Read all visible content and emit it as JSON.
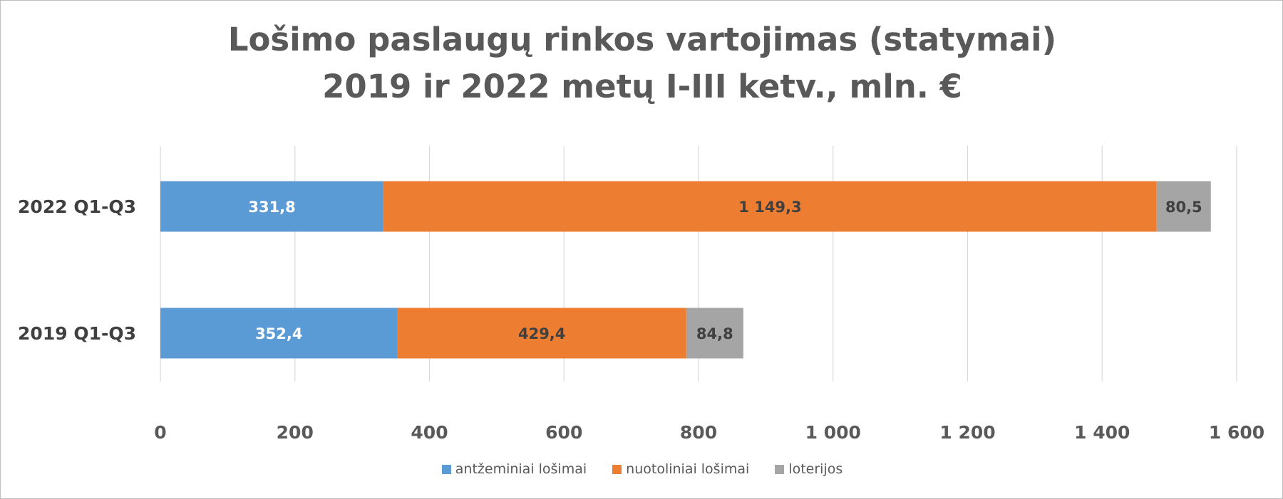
{
  "chart_data": {
    "type": "bar",
    "orientation": "horizontal",
    "stacked": true,
    "title": [
      "Lošimo paslaugų rinkos vartojimas (statymai)",
      "2019 ir 2022 metų I-III ketv., mln. €"
    ],
    "categories": [
      "2022 Q1-Q3",
      "2019 Q1-Q3"
    ],
    "series": [
      {
        "name": "antžeminiai lošimai",
        "values": [
          331.8,
          352.4
        ],
        "labels": [
          "331,8",
          "352,4"
        ],
        "color": "#5b9bd5",
        "label_color": "#ffffff"
      },
      {
        "name": "nuotoliniai lošimai",
        "values": [
          1149.3,
          429.4
        ],
        "labels": [
          "1 149,3",
          "429,4"
        ],
        "color": "#ed7d31",
        "label_color": "#404040"
      },
      {
        "name": "loterijos",
        "values": [
          80.5,
          84.8
        ],
        "labels": [
          "80,5",
          "84,8"
        ],
        "color": "#a5a5a5",
        "label_color": "#404040"
      }
    ],
    "x_ticks": [
      0,
      200,
      400,
      600,
      800,
      1000,
      1200,
      1400,
      1600
    ],
    "x_tick_labels": [
      "0",
      "200",
      "400",
      "600",
      "800",
      "1 000",
      "1 200",
      "1 400",
      "1 600"
    ],
    "xlim": [
      0,
      1600
    ],
    "grid": "vertical",
    "legend_position": "bottom",
    "gridline_color": "#d9d9d9"
  }
}
